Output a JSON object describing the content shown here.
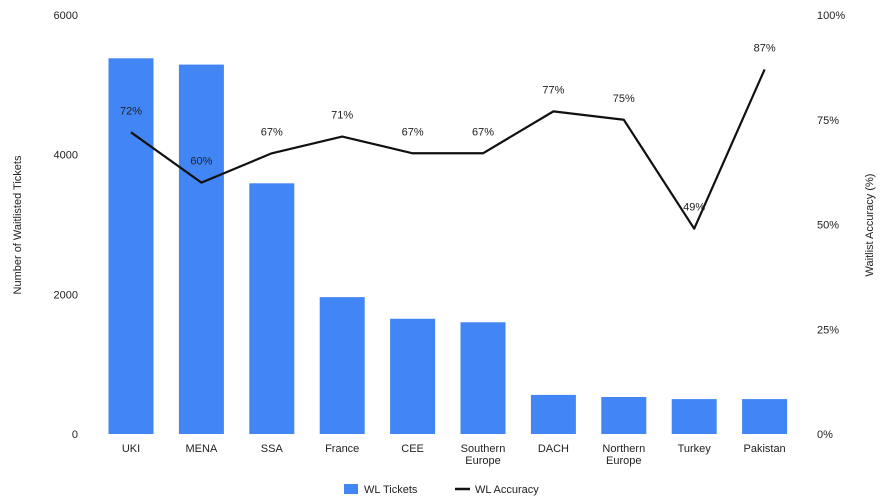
{
  "chart_data": {
    "type": "bar",
    "categories": [
      [
        "UKI"
      ],
      [
        "MENA"
      ],
      [
        "SSA"
      ],
      [
        "France"
      ],
      [
        "CEE"
      ],
      [
        "Southern",
        "Europe"
      ],
      [
        "DACH"
      ],
      [
        "Northern",
        "Europe"
      ],
      [
        "Turkey"
      ],
      [
        "Pakistan"
      ]
    ],
    "series": [
      {
        "name": "WL Tickets",
        "type": "bar",
        "axis": "left",
        "color": "#4285f4",
        "values": [
          5380,
          5290,
          3590,
          1960,
          1650,
          1600,
          560,
          530,
          500,
          500
        ]
      },
      {
        "name": "WL Accuracy",
        "type": "line",
        "axis": "right",
        "color": "#111111",
        "values": [
          72,
          60,
          67,
          71,
          67,
          67,
          77,
          75,
          49,
          87
        ],
        "labels": [
          "72%",
          "60%",
          "67%",
          "71%",
          "67%",
          "67%",
          "77%",
          "75%",
          "49%",
          "87%"
        ]
      }
    ],
    "y_left": {
      "label": "Number of Waitlisted Tickets",
      "ylim": [
        0,
        6000
      ],
      "ticks": [
        0,
        2000,
        4000,
        6000
      ],
      "tick_labels": [
        "0",
        "2000",
        "4000",
        "6000"
      ]
    },
    "y_right": {
      "label": "Waitlist Accuracy  (%)",
      "ylim": [
        0,
        100
      ],
      "ticks": [
        0,
        25,
        50,
        75,
        100
      ],
      "tick_labels": [
        "0%",
        "25%",
        "50%",
        "75%",
        "100%"
      ]
    },
    "grid": false,
    "legend_position": "bottom-center"
  }
}
